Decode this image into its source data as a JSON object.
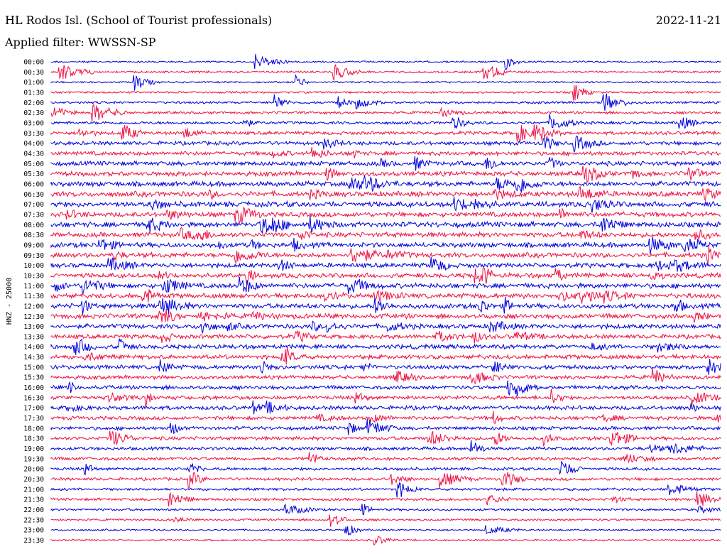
{
  "header": {
    "title": "HL Rodos Isl. (School of Tourist professionals)",
    "date": "2022-11-21",
    "filter": "Applied filter: WWSSN-SP"
  },
  "chart_data": {
    "type": "line",
    "ylabel": "HNZ - 25000",
    "row_labels": [
      "00:00",
      "00:30",
      "01:00",
      "01:30",
      "02:00",
      "02:30",
      "03:00",
      "03:30",
      "04:00",
      "04:30",
      "05:00",
      "05:30",
      "06:00",
      "06:30",
      "07:00",
      "07:30",
      "08:00",
      "08:30",
      "09:00",
      "09:30",
      "10:00",
      "10:30",
      "11:00",
      "11:30",
      "12:00",
      "12:30",
      "13:00",
      "13:30",
      "14:00",
      "14:30",
      "15:00",
      "15:30",
      "16:00",
      "16:30",
      "17:00",
      "17:30",
      "18:00",
      "18:30",
      "19:00",
      "19:30",
      "20:00",
      "20:30",
      "21:00",
      "21:30",
      "22:00",
      "22:30",
      "23:00",
      "23:30"
    ],
    "colors": [
      "#0000dd",
      "#ee1144"
    ],
    "noise_level": [
      0.15,
      0.2,
      0.15,
      0.2,
      0.25,
      0.3,
      0.35,
      0.45,
      0.5,
      0.55,
      0.6,
      0.65,
      0.7,
      0.75,
      0.75,
      0.7,
      0.75,
      0.7,
      0.7,
      0.7,
      0.65,
      0.65,
      0.7,
      0.7,
      0.7,
      0.7,
      0.65,
      0.6,
      0.6,
      0.6,
      0.55,
      0.5,
      0.5,
      0.5,
      0.55,
      0.5,
      0.45,
      0.45,
      0.4,
      0.4,
      0.35,
      0.35,
      0.3,
      0.3,
      0.25,
      0.2,
      0.15,
      0.15
    ]
  }
}
